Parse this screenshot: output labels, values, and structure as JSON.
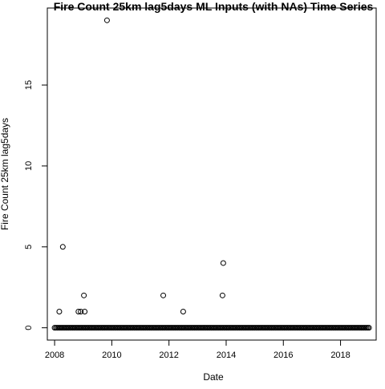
{
  "chart_data": {
    "type": "scatter",
    "title": "Fire Count 25km lag5days ML Inputs (with NAs) Time Series",
    "xlabel": "Date",
    "ylabel": "Fire Count 25km lag5days",
    "x_ticks": [
      "2008",
      "2010",
      "2012",
      "2014",
      "2016",
      "2018"
    ],
    "y_ticks": [
      "0",
      "5",
      "10",
      "15"
    ],
    "xlim": [
      "2007-09-30",
      "2019-04-01"
    ],
    "ylim": [
      -0.76,
      19.76
    ],
    "grid": false,
    "baseline": {
      "x_start": "2008-01-01",
      "x_end": "2018-12-31",
      "y": 0
    },
    "points": [
      {
        "x": "2008-03-01",
        "y": 1
      },
      {
        "x": "2008-04-15",
        "y": 5
      },
      {
        "x": "2008-11-01",
        "y": 1
      },
      {
        "x": "2008-12-01",
        "y": 1
      },
      {
        "x": "2009-01-10",
        "y": 2
      },
      {
        "x": "2009-01-20",
        "y": 1
      },
      {
        "x": "2009-11-01",
        "y": 19
      },
      {
        "x": "2011-10-20",
        "y": 2
      },
      {
        "x": "2012-07-01",
        "y": 1
      },
      {
        "x": "2013-11-15",
        "y": 2
      },
      {
        "x": "2013-11-25",
        "y": 4
      }
    ]
  }
}
